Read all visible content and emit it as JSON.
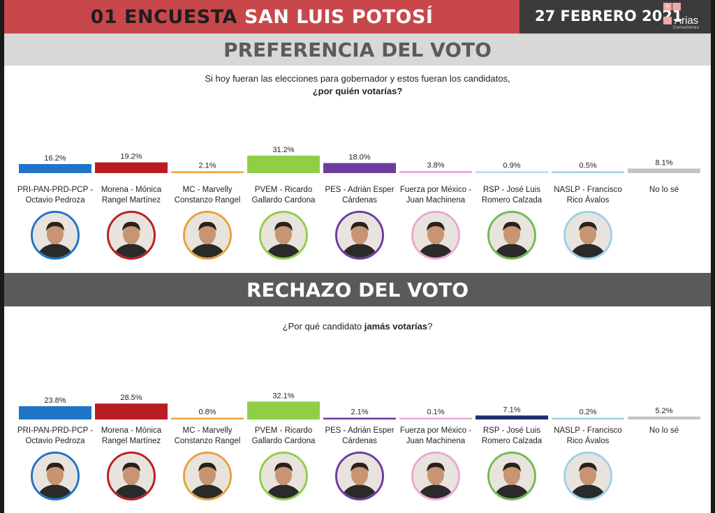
{
  "header": {
    "title_part1": "01 ENCUESTA",
    "title_part2": "SAN LUIS POTOSÍ",
    "date": "27 FEBRERO 2021",
    "logo": {
      "name": "Arias",
      "subtitle": "Consultores",
      "icon": "arias-logo-icon"
    }
  },
  "section1": {
    "heading": "PREFERENCIA DEL VOTO",
    "question_line1": "Si hoy fueran las elecciones para gobernador y estos fueran los candidatos,",
    "question_line2": "¿por quién votarías?"
  },
  "section2": {
    "heading": "RECHAZO DEL VOTO",
    "question_pre": "¿Por qué candidato ",
    "question_bold": "jamás votarías",
    "question_post": "?"
  },
  "candidates": [
    {
      "line1": "PRI-PAN-PRD-PCP -",
      "line2": "Octavio Pedroza",
      "color": "#1f74c8",
      "ring": "#1f74c8",
      "photo": "candidate-photo-icon"
    },
    {
      "line1": "Morena - Mónica",
      "line2": "Rangel Martínez",
      "color": "#b91d22",
      "ring": "#b91d22",
      "photo": "candidate-photo-icon"
    },
    {
      "line1": "MC - Marvelly",
      "line2": "Constanzo Rangel",
      "color": "#e8a23c",
      "ring": "#e8a23c",
      "photo": "candidate-photo-icon"
    },
    {
      "line1": "PVEM - Ricardo",
      "line2": "Gallardo Cardona",
      "color": "#8fcf47",
      "ring": "#8fcf47",
      "photo": "candidate-photo-icon"
    },
    {
      "line1": "PES - Adrián Esper",
      "line2": "Cárdenas",
      "color": "#6c3d9e",
      "ring": "#6c3d9e",
      "photo": "candidate-photo-icon"
    },
    {
      "line1": "Fuerza por México -",
      "line2": "Juan Machinena",
      "color": "#e9a9d3",
      "ring": "#e9a9d3",
      "photo": "candidate-photo-icon"
    },
    {
      "line1": "RSP - José Luis",
      "line2": "Romero Calzada",
      "color": "#1d2f6e",
      "ring": "#6fbd53",
      "photo": "candidate-photo-icon"
    },
    {
      "line1": "NASLP - Francisco",
      "line2": "Rico Ávalos",
      "color": "#9fd0e8",
      "ring": "#9fd0e8",
      "photo": "candidate-photo-icon"
    },
    {
      "line1": "No lo sé",
      "line2": "",
      "color": "#c4c4c4",
      "ring": "",
      "photo": ""
    }
  ],
  "chart_data": [
    {
      "type": "bar",
      "title": "PREFERENCIA DEL VOTO",
      "categories": [
        "PRI-PAN-PRD-PCP - Octavio Pedroza",
        "Morena - Mónica Rangel Martínez",
        "MC - Marvelly Constanzo Rangel",
        "PVEM - Ricardo Gallardo Cardona",
        "PES - Adrián Esper Cárdenas",
        "Fuerza por México - Juan Machinena",
        "RSP - José Luis Romero Calzada",
        "NASLP - Francisco Rico Ávalos",
        "No lo sé"
      ],
      "values": [
        16.2,
        19.2,
        2.1,
        31.2,
        18.0,
        3.8,
        0.9,
        0.5,
        8.1
      ],
      "labels": [
        "16.2%",
        "19.2%",
        "2.1%",
        "31.2%",
        "18.0%",
        "3.8%",
        "0.9%",
        "0.5%",
        "8.1%"
      ],
      "colors": [
        "#1f74c8",
        "#b91d22",
        "#e8a23c",
        "#8fcf47",
        "#6c3d9e",
        "#e9a9d3",
        "#b8d8ef",
        "#9fd0e8",
        "#c4c4c4"
      ],
      "ylim": [
        0,
        35
      ]
    },
    {
      "type": "bar",
      "title": "RECHAZO DEL VOTO",
      "categories": [
        "PRI-PAN-PRD-PCP - Octavio Pedroza",
        "Morena - Mónica Rangel Martínez",
        "MC - Marvelly Constanzo Rangel",
        "PVEM - Ricardo Gallardo Cardona",
        "PES - Adrián Esper Cárdenas",
        "Fuerza por México - Juan Machinena",
        "RSP - José Luis Romero Calzada",
        "NASLP - Francisco Rico Ávalos",
        "No lo sé"
      ],
      "values": [
        23.8,
        28.5,
        0.8,
        32.1,
        2.1,
        0.1,
        7.1,
        0.2,
        5.2
      ],
      "labels": [
        "23.8%",
        "28.5%",
        "0.8%",
        "32.1%",
        "2.1%",
        "0.1%",
        "7.1%",
        "0.2%",
        "5.2%"
      ],
      "colors": [
        "#1f74c8",
        "#b91d22",
        "#e8a23c",
        "#8fcf47",
        "#6c3d9e",
        "#e9a9d3",
        "#1d2f6e",
        "#9fd0e8",
        "#c4c4c4"
      ],
      "ylim": [
        0,
        35
      ]
    }
  ]
}
